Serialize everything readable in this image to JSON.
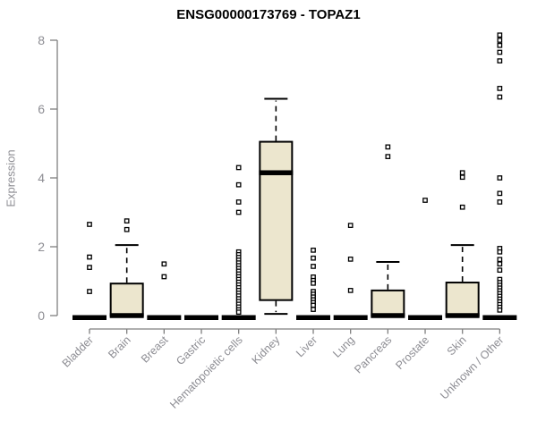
{
  "chart_data": {
    "type": "boxplot",
    "title": "ENSG00000173769 - TOPAZ1",
    "xlabel": "",
    "ylabel": "Expression",
    "ylim": [
      0,
      8
    ],
    "yticks": [
      0,
      2,
      4,
      6,
      8
    ],
    "grid": false,
    "legend": "none",
    "categories": [
      "Bladder",
      "Brain",
      "Breast",
      "Gastric",
      "Hematopoietic cells",
      "Kidney",
      "Liver",
      "Lung",
      "Pancreas",
      "Prostate",
      "Skin",
      "Unknown / Other"
    ],
    "boxes": [
      {
        "label": "Bladder",
        "q1": 0,
        "median": 0,
        "q3": 0,
        "whisker_low": 0,
        "whisker_high": 0,
        "outliers": [
          2.65,
          1.7,
          1.4,
          0.7
        ]
      },
      {
        "label": "Brain",
        "q1": 0,
        "median": 0,
        "q3": 0.93,
        "whisker_low": 0,
        "whisker_high": 2.05,
        "outliers": [
          2.75,
          2.5
        ]
      },
      {
        "label": "Breast",
        "q1": 0,
        "median": 0,
        "q3": 0,
        "whisker_low": 0,
        "whisker_high": 0,
        "outliers": [
          1.5,
          1.13
        ]
      },
      {
        "label": "Gastric",
        "q1": 0,
        "median": 0,
        "q3": 0,
        "whisker_low": 0,
        "whisker_high": 0,
        "outliers": []
      },
      {
        "label": "Hematopoietic cells",
        "q1": 0,
        "median": 0,
        "q3": 0,
        "whisker_low": 0,
        "whisker_high": 0,
        "outliers": [
          4.3,
          3.8,
          3.3,
          3.0,
          1.85,
          1.77,
          1.69,
          1.61,
          1.53,
          1.45,
          1.37,
          1.29,
          1.21,
          1.13,
          1.05,
          0.97,
          0.89,
          0.81,
          0.73,
          0.65,
          0.57,
          0.49,
          0.41,
          0.33,
          0.25,
          0.17,
          0.1
        ]
      },
      {
        "label": "Kidney",
        "q1": 0.45,
        "median": 4.15,
        "q3": 5.05,
        "whisker_low": 0.05,
        "whisker_high": 6.3,
        "outliers": []
      },
      {
        "label": "Liver",
        "q1": 0,
        "median": 0,
        "q3": 0,
        "whisker_low": 0,
        "whisker_high": 0,
        "outliers": [
          1.9,
          1.67,
          1.43,
          1.12,
          1.02,
          0.94,
          0.7,
          0.62,
          0.54,
          0.46,
          0.38,
          0.3,
          0.18
        ]
      },
      {
        "label": "Lung",
        "q1": 0,
        "median": 0,
        "q3": 0,
        "whisker_low": 0,
        "whisker_high": 0,
        "outliers": [
          2.62,
          1.64,
          0.73
        ]
      },
      {
        "label": "Pancreas",
        "q1": 0,
        "median": 0,
        "q3": 0.73,
        "whisker_low": 0,
        "whisker_high": 1.56,
        "outliers": [
          4.9,
          4.62
        ]
      },
      {
        "label": "Prostate",
        "q1": 0,
        "median": 0,
        "q3": 0,
        "whisker_low": 0,
        "whisker_high": 0,
        "outliers": [
          3.35
        ]
      },
      {
        "label": "Skin",
        "q1": 0,
        "median": 0,
        "q3": 0.96,
        "whisker_low": 0,
        "whisker_high": 2.05,
        "outliers": [
          4.15,
          4.02,
          3.15
        ]
      },
      {
        "label": "Unknown / Other",
        "q1": 0,
        "median": 0,
        "q3": 0,
        "whisker_low": 0,
        "whisker_high": 0,
        "outliers": [
          8.15,
          8.0,
          7.85,
          7.65,
          7.4,
          6.6,
          6.35,
          4.0,
          3.55,
          3.3,
          1.95,
          1.85,
          1.63,
          1.5,
          1.32,
          1.05,
          0.96,
          0.88,
          0.8,
          0.72,
          0.64,
          0.56,
          0.48,
          0.4,
          0.32,
          0.24,
          0.16
        ]
      }
    ]
  },
  "colors": {
    "background": "#ffffff",
    "box_fill": "#ECE6CE",
    "box_stroke": "#000000",
    "median": "#000000",
    "outlier_stroke": "#000000",
    "outlier_fill": "#ffffff",
    "axis": "#7f7f7f",
    "tick_label": "#8d8d93",
    "title": "#000000"
  }
}
